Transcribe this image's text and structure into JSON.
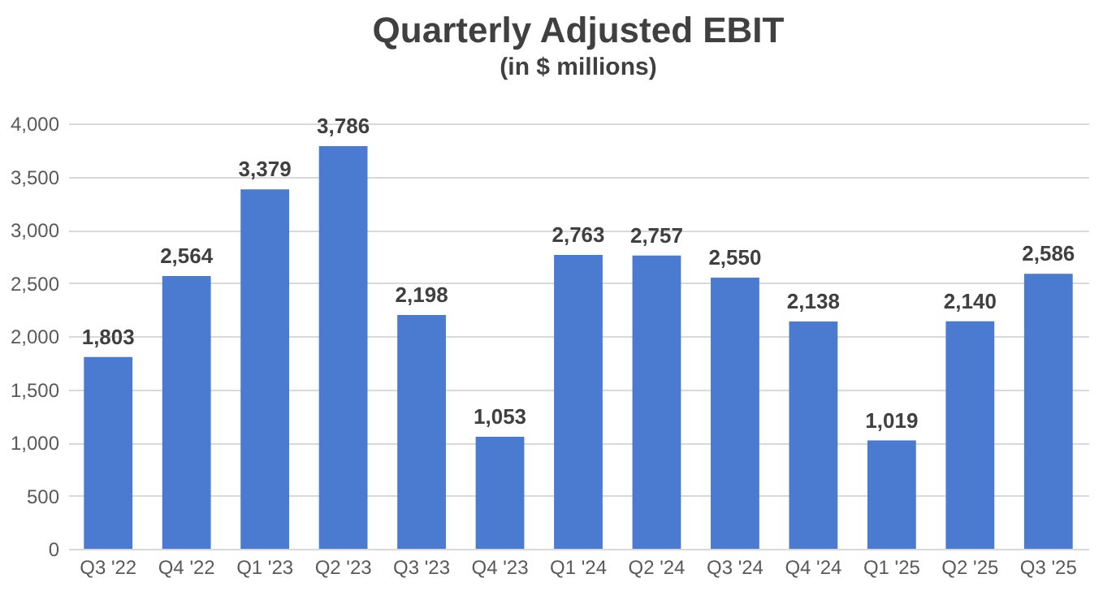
{
  "chart_data": {
    "type": "bar",
    "title": "Quarterly Adjusted EBIT",
    "subtitle": "(in $ millions)",
    "categories": [
      "Q3 '22",
      "Q4 '22",
      "Q1 '23",
      "Q2 '23",
      "Q3 '23",
      "Q4 '23",
      "Q1 '24",
      "Q2 '24",
      "Q3 '24",
      "Q4 '24",
      "Q1 '25",
      "Q2 '25",
      "Q3 '25"
    ],
    "values": [
      1803,
      2564,
      3379,
      3786,
      2198,
      1053,
      2763,
      2757,
      2550,
      2138,
      1019,
      2140,
      2586
    ],
    "value_labels": [
      "1,803",
      "2,564",
      "3,379",
      "3,786",
      "2,198",
      "1,053",
      "2,763",
      "2,757",
      "2,550",
      "2,138",
      "1,019",
      "2,140",
      "2,586"
    ],
    "color": "#4a7bd0",
    "ylim": [
      0,
      4000
    ],
    "yticks": [
      0,
      {
        "value": 500,
        "label": "500"
      },
      {
        "value": 1000,
        "label": "1,000"
      },
      {
        "value": 1500,
        "label": "1,500"
      },
      {
        "value": 2000,
        "label": "2,000"
      },
      {
        "value": 2500,
        "label": "2,500"
      },
      {
        "value": 3000,
        "label": "3,000"
      },
      {
        "value": 3500,
        "label": "3,500"
      },
      {
        "value": 4000,
        "label": "4,000"
      }
    ],
    "grid": "y"
  }
}
